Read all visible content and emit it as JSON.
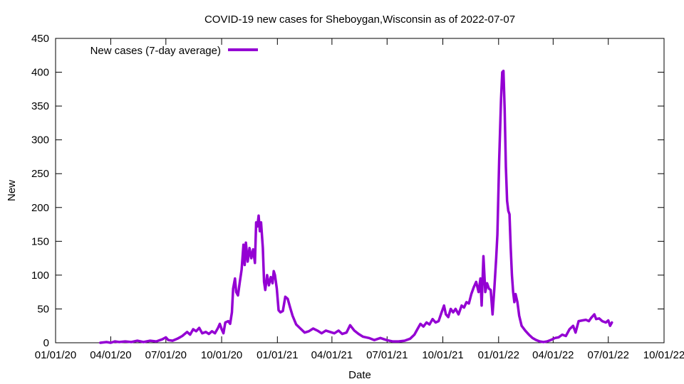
{
  "chart_data": {
    "type": "line",
    "title": "COVID-19 new cases for Sheboygan,Wisconsin as of 2022-07-07",
    "xlabel": "Date",
    "ylabel": "New",
    "xlim": [
      "2020-01-01",
      "2022-10-01"
    ],
    "ylim": [
      0,
      450
    ],
    "x_ticks": [
      {
        "date": "2020-01-01",
        "label": "01/01/20"
      },
      {
        "date": "2020-04-01",
        "label": "04/01/20"
      },
      {
        "date": "2020-07-01",
        "label": "07/01/20"
      },
      {
        "date": "2020-10-01",
        "label": "10/01/20"
      },
      {
        "date": "2021-01-01",
        "label": "01/01/21"
      },
      {
        "date": "2021-04-01",
        "label": "04/01/21"
      },
      {
        "date": "2021-07-01",
        "label": "07/01/21"
      },
      {
        "date": "2021-10-01",
        "label": "10/01/21"
      },
      {
        "date": "2022-01-01",
        "label": "01/01/22"
      },
      {
        "date": "2022-04-01",
        "label": "04/01/22"
      },
      {
        "date": "2022-07-01",
        "label": "07/01/22"
      },
      {
        "date": "2022-10-01",
        "label": "10/01/22"
      }
    ],
    "y_ticks": [
      0,
      50,
      100,
      150,
      200,
      250,
      300,
      350,
      400,
      450
    ],
    "grid": false,
    "legend_position": "top-left",
    "series": [
      {
        "name": "New cases (7-day average)",
        "color": "#9400d3",
        "points": [
          [
            "2020-03-15",
            0
          ],
          [
            "2020-03-25",
            1
          ],
          [
            "2020-04-01",
            0
          ],
          [
            "2020-04-08",
            2
          ],
          [
            "2020-04-15",
            1
          ],
          [
            "2020-04-25",
            2
          ],
          [
            "2020-05-05",
            1
          ],
          [
            "2020-05-15",
            3
          ],
          [
            "2020-05-25",
            1
          ],
          [
            "2020-06-05",
            3
          ],
          [
            "2020-06-15",
            2
          ],
          [
            "2020-06-25",
            5
          ],
          [
            "2020-07-01",
            8
          ],
          [
            "2020-07-05",
            4
          ],
          [
            "2020-07-12",
            3
          ],
          [
            "2020-07-20",
            6
          ],
          [
            "2020-07-28",
            10
          ],
          [
            "2020-08-05",
            16
          ],
          [
            "2020-08-10",
            12
          ],
          [
            "2020-08-15",
            20
          ],
          [
            "2020-08-20",
            17
          ],
          [
            "2020-08-25",
            22
          ],
          [
            "2020-08-30",
            14
          ],
          [
            "2020-09-05",
            16
          ],
          [
            "2020-09-10",
            13
          ],
          [
            "2020-09-15",
            17
          ],
          [
            "2020-09-20",
            14
          ],
          [
            "2020-09-25",
            22
          ],
          [
            "2020-09-28",
            28
          ],
          [
            "2020-10-01",
            20
          ],
          [
            "2020-10-04",
            14
          ],
          [
            "2020-10-07",
            30
          ],
          [
            "2020-10-12",
            32
          ],
          [
            "2020-10-15",
            28
          ],
          [
            "2020-10-18",
            45
          ],
          [
            "2020-10-20",
            80
          ],
          [
            "2020-10-23",
            95
          ],
          [
            "2020-10-25",
            75
          ],
          [
            "2020-10-28",
            70
          ],
          [
            "2020-10-31",
            90
          ],
          [
            "2020-11-03",
            108
          ],
          [
            "2020-11-06",
            145
          ],
          [
            "2020-11-08",
            115
          ],
          [
            "2020-11-10",
            148
          ],
          [
            "2020-11-13",
            120
          ],
          [
            "2020-11-16",
            140
          ],
          [
            "2020-11-19",
            125
          ],
          [
            "2020-11-22",
            138
          ],
          [
            "2020-11-25",
            118
          ],
          [
            "2020-11-27",
            178
          ],
          [
            "2020-11-29",
            172
          ],
          [
            "2020-12-01",
            188
          ],
          [
            "2020-12-03",
            165
          ],
          [
            "2020-12-05",
            178
          ],
          [
            "2020-12-08",
            140
          ],
          [
            "2020-12-10",
            90
          ],
          [
            "2020-12-12",
            78
          ],
          [
            "2020-12-15",
            100
          ],
          [
            "2020-12-18",
            85
          ],
          [
            "2020-12-21",
            97
          ],
          [
            "2020-12-24",
            88
          ],
          [
            "2020-12-26",
            106
          ],
          [
            "2020-12-28",
            100
          ],
          [
            "2020-12-31",
            80
          ],
          [
            "2021-01-03",
            48
          ],
          [
            "2021-01-06",
            45
          ],
          [
            "2021-01-10",
            47
          ],
          [
            "2021-01-14",
            68
          ],
          [
            "2021-01-18",
            65
          ],
          [
            "2021-01-22",
            52
          ],
          [
            "2021-01-26",
            40
          ],
          [
            "2021-02-01",
            27
          ],
          [
            "2021-02-08",
            21
          ],
          [
            "2021-02-15",
            15
          ],
          [
            "2021-02-22",
            17
          ],
          [
            "2021-03-01",
            21
          ],
          [
            "2021-03-08",
            18
          ],
          [
            "2021-03-15",
            14
          ],
          [
            "2021-03-22",
            18
          ],
          [
            "2021-03-29",
            16
          ],
          [
            "2021-04-05",
            14
          ],
          [
            "2021-04-12",
            18
          ],
          [
            "2021-04-18",
            13
          ],
          [
            "2021-04-25",
            15
          ],
          [
            "2021-05-01",
            26
          ],
          [
            "2021-05-08",
            18
          ],
          [
            "2021-05-15",
            13
          ],
          [
            "2021-05-22",
            9
          ],
          [
            "2021-06-01",
            7
          ],
          [
            "2021-06-10",
            4
          ],
          [
            "2021-06-20",
            7
          ],
          [
            "2021-06-30",
            4
          ],
          [
            "2021-07-10",
            2
          ],
          [
            "2021-07-20",
            2
          ],
          [
            "2021-07-30",
            3
          ],
          [
            "2021-08-08",
            6
          ],
          [
            "2021-08-15",
            12
          ],
          [
            "2021-08-20",
            20
          ],
          [
            "2021-08-25",
            28
          ],
          [
            "2021-08-30",
            24
          ],
          [
            "2021-09-04",
            30
          ],
          [
            "2021-09-09",
            27
          ],
          [
            "2021-09-14",
            35
          ],
          [
            "2021-09-19",
            30
          ],
          [
            "2021-09-24",
            32
          ],
          [
            "2021-09-29",
            45
          ],
          [
            "2021-10-03",
            55
          ],
          [
            "2021-10-06",
            42
          ],
          [
            "2021-10-10",
            38
          ],
          [
            "2021-10-14",
            50
          ],
          [
            "2021-10-18",
            45
          ],
          [
            "2021-10-22",
            50
          ],
          [
            "2021-10-27",
            42
          ],
          [
            "2021-11-01",
            55
          ],
          [
            "2021-11-05",
            52
          ],
          [
            "2021-11-09",
            60
          ],
          [
            "2021-11-13",
            58
          ],
          [
            "2021-11-17",
            72
          ],
          [
            "2021-11-21",
            82
          ],
          [
            "2021-11-25",
            90
          ],
          [
            "2021-11-29",
            75
          ],
          [
            "2021-12-02",
            95
          ],
          [
            "2021-12-04",
            55
          ],
          [
            "2021-12-07",
            128
          ],
          [
            "2021-12-10",
            75
          ],
          [
            "2021-12-13",
            88
          ],
          [
            "2021-12-16",
            80
          ],
          [
            "2021-12-19",
            78
          ],
          [
            "2021-12-22",
            42
          ],
          [
            "2021-12-25",
            80
          ],
          [
            "2021-12-28",
            125
          ],
          [
            "2021-12-30",
            160
          ],
          [
            "2022-01-02",
            270
          ],
          [
            "2022-01-05",
            360
          ],
          [
            "2022-01-07",
            400
          ],
          [
            "2022-01-09",
            402
          ],
          [
            "2022-01-11",
            345
          ],
          [
            "2022-01-13",
            260
          ],
          [
            "2022-01-15",
            210
          ],
          [
            "2022-01-17",
            195
          ],
          [
            "2022-01-19",
            190
          ],
          [
            "2022-01-21",
            140
          ],
          [
            "2022-01-23",
            100
          ],
          [
            "2022-01-25",
            75
          ],
          [
            "2022-01-27",
            60
          ],
          [
            "2022-01-29",
            72
          ],
          [
            "2022-02-01",
            60
          ],
          [
            "2022-02-04",
            40
          ],
          [
            "2022-02-08",
            25
          ],
          [
            "2022-02-14",
            18
          ],
          [
            "2022-02-20",
            12
          ],
          [
            "2022-02-26",
            7
          ],
          [
            "2022-03-04",
            4
          ],
          [
            "2022-03-10",
            2
          ],
          [
            "2022-03-16",
            1
          ],
          [
            "2022-03-22",
            2
          ],
          [
            "2022-03-28",
            4
          ],
          [
            "2022-04-04",
            7
          ],
          [
            "2022-04-10",
            8
          ],
          [
            "2022-04-16",
            12
          ],
          [
            "2022-04-22",
            10
          ],
          [
            "2022-04-28",
            20
          ],
          [
            "2022-05-04",
            25
          ],
          [
            "2022-05-08",
            15
          ],
          [
            "2022-05-13",
            32
          ],
          [
            "2022-05-19",
            33
          ],
          [
            "2022-05-25",
            34
          ],
          [
            "2022-05-30",
            32
          ],
          [
            "2022-06-03",
            37
          ],
          [
            "2022-06-08",
            42
          ],
          [
            "2022-06-11",
            35
          ],
          [
            "2022-06-16",
            36
          ],
          [
            "2022-06-21",
            32
          ],
          [
            "2022-06-27",
            30
          ],
          [
            "2022-07-01",
            33
          ],
          [
            "2022-07-04",
            25
          ],
          [
            "2022-07-07",
            30
          ]
        ]
      }
    ]
  }
}
